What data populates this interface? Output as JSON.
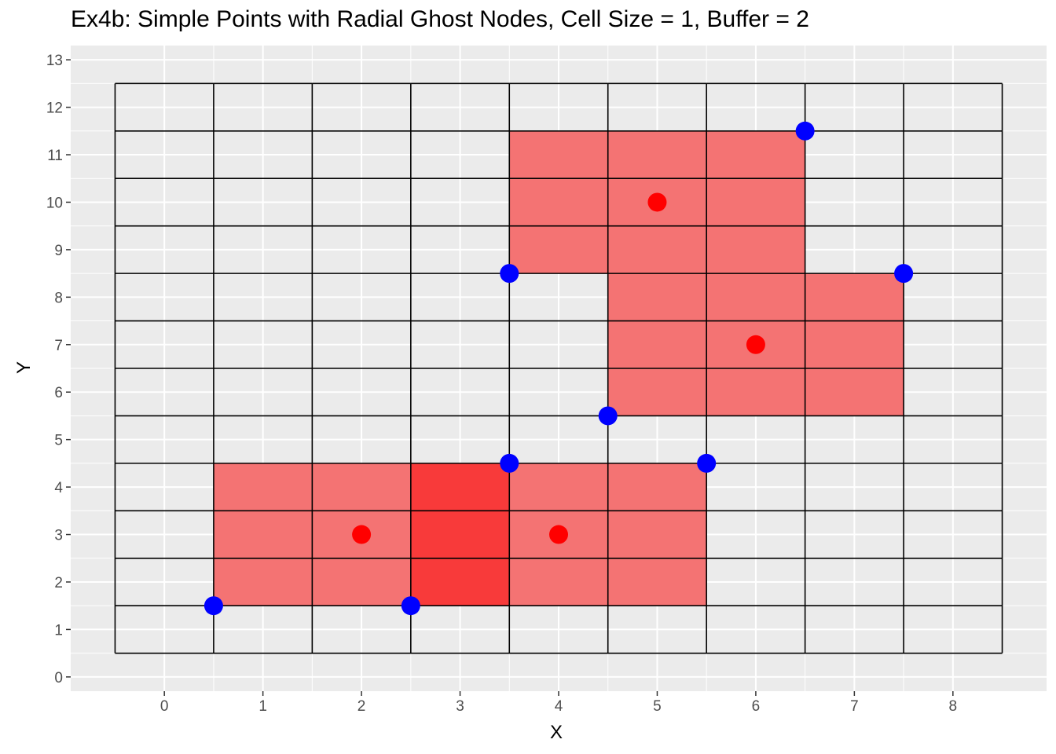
{
  "chart_data": {
    "type": "scatter",
    "title": "Ex4b: Simple Points with Radial Ghost Nodes, Cell Size = 1, Buffer = 2",
    "xlabel": "X",
    "ylabel": "Y",
    "xlim": [
      -0.95,
      8.95
    ],
    "ylim": [
      -0.3,
      13.3
    ],
    "x_ticks": [
      0,
      1,
      2,
      3,
      4,
      5,
      6,
      7,
      8
    ],
    "y_ticks": [
      0,
      1,
      2,
      3,
      4,
      5,
      6,
      7,
      8,
      9,
      10,
      11,
      12,
      13
    ],
    "grid": true,
    "legend": "none",
    "background_color": "#ebebeb",
    "grid_color": "#ffffff",
    "cell_grid": {
      "x_breaks": [
        -0.5,
        0.5,
        1.5,
        2.5,
        3.5,
        4.5,
        5.5,
        6.5,
        7.5,
        8.5
      ],
      "y_breaks": [
        0.5,
        1.5,
        2.5,
        3.5,
        4.5,
        5.5,
        6.5,
        7.5,
        8.5,
        9.5,
        10.5,
        11.5,
        12.5
      ],
      "line_color": "#000000"
    },
    "shaded_regions": [
      {
        "xmin": 0.5,
        "xmax": 3.5,
        "ymin": 1.5,
        "ymax": 4.5,
        "color": "#f8766d",
        "opacity": 0.9
      },
      {
        "xmin": 2.5,
        "xmax": 5.5,
        "ymin": 1.5,
        "ymax": 4.5,
        "color": "#f8766d",
        "opacity": 0.9
      },
      {
        "xmin": 3.5,
        "xmax": 6.5,
        "ymin": 8.5,
        "ymax": 11.5,
        "color": "#f8766d",
        "opacity": 0.9
      },
      {
        "xmin": 4.5,
        "xmax": 7.5,
        "ymin": 5.5,
        "ymax": 8.5,
        "color": "#f8766d",
        "opacity": 0.9
      }
    ],
    "overlap_color": "#f83a3a",
    "region_color": "#f47373",
    "series": [
      {
        "points": [
          {
            "x": 2,
            "y": 3
          },
          {
            "x": 4,
            "y": 3
          },
          {
            "x": 5,
            "y": 10
          },
          {
            "x": 6,
            "y": 7
          }
        ],
        "color": "#ff0000",
        "radius": 12
      },
      {
        "points": [
          {
            "x": 0.5,
            "y": 1.5
          },
          {
            "x": 2.5,
            "y": 1.5
          },
          {
            "x": 3.5,
            "y": 4.5
          },
          {
            "x": 3.5,
            "y": 8.5
          },
          {
            "x": 4.5,
            "y": 5.5
          },
          {
            "x": 5.5,
            "y": 4.5
          },
          {
            "x": 6.5,
            "y": 11.5
          },
          {
            "x": 7.5,
            "y": 8.5
          }
        ],
        "color": "#0000ff",
        "radius": 12
      }
    ]
  }
}
